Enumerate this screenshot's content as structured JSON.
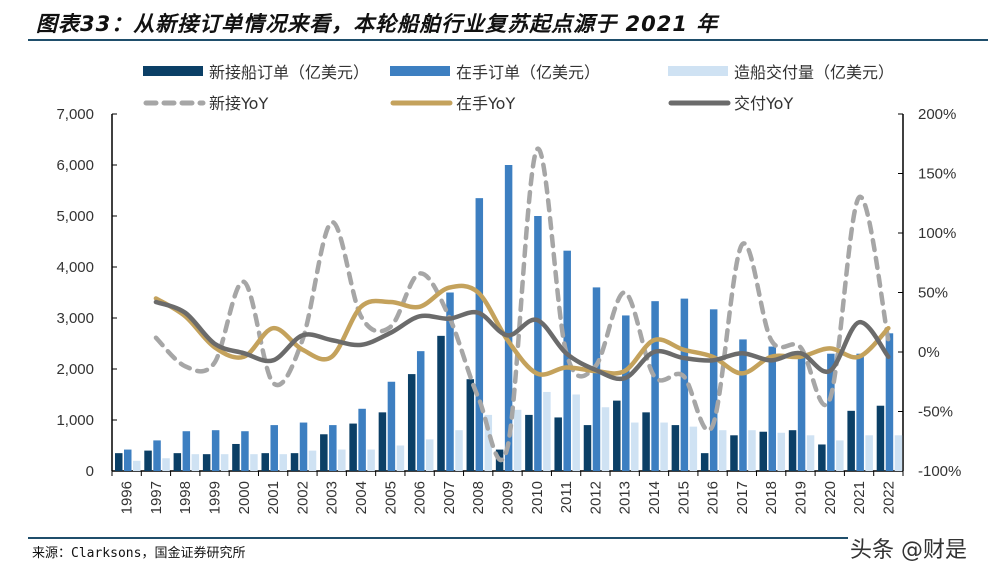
{
  "title": "图表33：从新接订单情况来看，本轮船舶行业复苏起点源于 2021 年",
  "source": "来源：Clarksons，国金证券研究所",
  "watermark": "头条 @财是",
  "chart_data": {
    "type": "bar+line",
    "categories": [
      "1996",
      "1997",
      "1998",
      "1999",
      "2000",
      "2001",
      "2002",
      "2003",
      "2004",
      "2005",
      "2006",
      "2007",
      "2008",
      "2009",
      "2010",
      "2011",
      "2012",
      "2013",
      "2014",
      "2015",
      "2016",
      "2017",
      "2018",
      "2019",
      "2020",
      "2021",
      "2022"
    ],
    "left_axis": {
      "range": [
        0,
        7000
      ],
      "ticks": [
        "0",
        "1,000",
        "2,000",
        "3,000",
        "4,000",
        "5,000",
        "6,000",
        "7,000"
      ]
    },
    "right_axis": {
      "range": [
        -100,
        200
      ],
      "ticks": [
        "-100%",
        "-50%",
        "0%",
        "50%",
        "100%",
        "150%",
        "200%"
      ]
    },
    "bar_series": [
      {
        "name": "新接船订单（亿美元）",
        "color": "#0b3f66",
        "values": [
          350,
          400,
          350,
          330,
          530,
          350,
          350,
          720,
          930,
          1150,
          1900,
          2650,
          1800,
          420,
          1100,
          1050,
          900,
          1380,
          1150,
          900,
          350,
          700,
          770,
          800,
          520,
          1180,
          1280
        ]
      },
      {
        "name": "在手订单（亿美元）",
        "color": "#3d7fc1",
        "values": [
          420,
          600,
          780,
          800,
          780,
          900,
          950,
          900,
          1220,
          1750,
          2350,
          3500,
          5350,
          6000,
          5000,
          4320,
          3600,
          3050,
          3330,
          3380,
          3170,
          2580,
          2440,
          2220,
          2300,
          2300,
          2700
        ]
      },
      {
        "name": "造船交付量（亿美元）",
        "color": "#cfe2f3",
        "values": [
          200,
          250,
          330,
          330,
          330,
          330,
          400,
          420,
          420,
          500,
          620,
          800,
          1100,
          1200,
          1550,
          1500,
          1250,
          950,
          950,
          870,
          800,
          800,
          750,
          700,
          600,
          700,
          700
        ]
      }
    ],
    "line_series": [
      {
        "name": "新接YoY",
        "color": "#a6a6a6",
        "dashed": true,
        "values": [
          null,
          12,
          -12,
          -9,
          59,
          -26,
          10,
          109,
          30,
          21,
          66,
          30,
          -38,
          -80,
          170,
          0,
          -12,
          50,
          -20,
          -20,
          -62,
          90,
          10,
          4,
          -40,
          130,
          10
        ]
      },
      {
        "name": "在手YoY",
        "color": "#c4a25c",
        "dashed": false,
        "values": [
          null,
          45,
          30,
          4,
          -4,
          20,
          2,
          -4,
          38,
          42,
          38,
          54,
          50,
          10,
          -18,
          -13,
          -16,
          -16,
          10,
          2,
          -4,
          -18,
          -4,
          -4,
          3,
          -4,
          20
        ]
      },
      {
        "name": "交付YoY",
        "color": "#6b6b6b",
        "dashed": false,
        "values": [
          null,
          42,
          33,
          7,
          -1,
          -7,
          14,
          10,
          6,
          16,
          30,
          28,
          33,
          14,
          27,
          -1,
          -15,
          -22,
          0,
          -5,
          -7,
          -1,
          -7,
          -1,
          -16,
          25,
          -4
        ]
      }
    ],
    "legend_placement": "top",
    "grid": false
  }
}
